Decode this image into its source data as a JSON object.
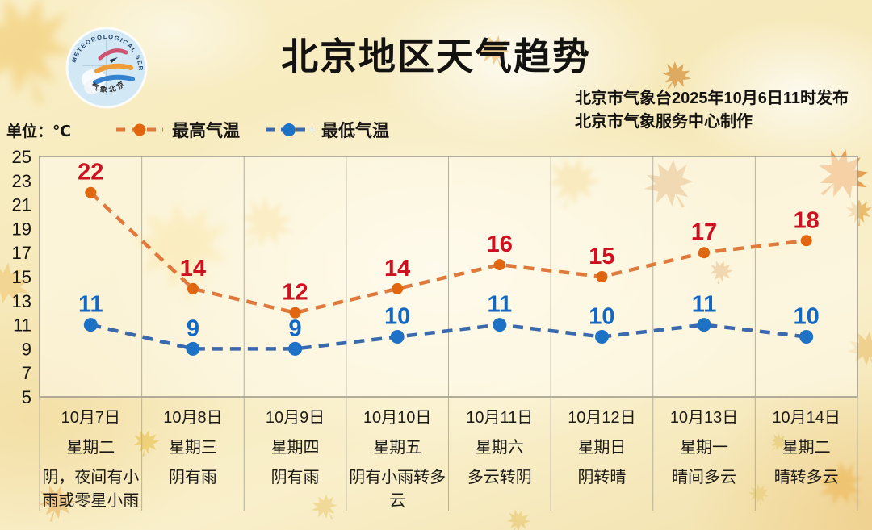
{
  "header": {
    "title": "北京地区天气趋势",
    "issued_line1": "北京市气象台2025年10月6日11时发布",
    "issued_line2": "北京市气象服务中心制作"
  },
  "logo": {
    "arc_text": "METEOROLOGICAL SERVICE",
    "side_text": "BEIJING",
    "bottom_text": "气象北京"
  },
  "unit_label": "单位：℃",
  "legend": {
    "high": {
      "label": "最高气温",
      "line_color": "#df7a3c",
      "marker_color": "#e0660f"
    },
    "low": {
      "label": "最低气温",
      "line_color": "#3b69ae",
      "marker_color": "#1d72c6"
    }
  },
  "colors": {
    "high_value_label": "#cf1020",
    "low_value_label": "#1268c4",
    "grid_line": "#b6b09e",
    "plot_border": "#9b9688"
  },
  "chart_data": {
    "type": "line",
    "title": "北京地区天气趋势",
    "ylabel": "℃",
    "ylim": [
      5,
      25
    ],
    "ytick_step": 2,
    "grid": "vertical-only",
    "legend_position": "top-left",
    "categories": [
      {
        "date": "10月7日",
        "weekday": "星期二",
        "weather": "阴，夜间有小雨或零星小雨"
      },
      {
        "date": "10月8日",
        "weekday": "星期三",
        "weather": "阴有雨"
      },
      {
        "date": "10月9日",
        "weekday": "星期四",
        "weather": "阴有雨"
      },
      {
        "date": "10月10日",
        "weekday": "星期五",
        "weather": "阴有小雨转多云"
      },
      {
        "date": "10月11日",
        "weekday": "星期六",
        "weather": "多云转阴"
      },
      {
        "date": "10月12日",
        "weekday": "星期日",
        "weather": "阴转晴"
      },
      {
        "date": "10月13日",
        "weekday": "星期一",
        "weather": "晴间多云"
      },
      {
        "date": "10月14日",
        "weekday": "星期二",
        "weather": "晴转多云"
      }
    ],
    "series": [
      {
        "name": "最高气温",
        "values": [
          22,
          14,
          12,
          14,
          16,
          15,
          17,
          18
        ]
      },
      {
        "name": "最低气温",
        "values": [
          11,
          9,
          9,
          10,
          11,
          10,
          11,
          10
        ]
      }
    ]
  }
}
